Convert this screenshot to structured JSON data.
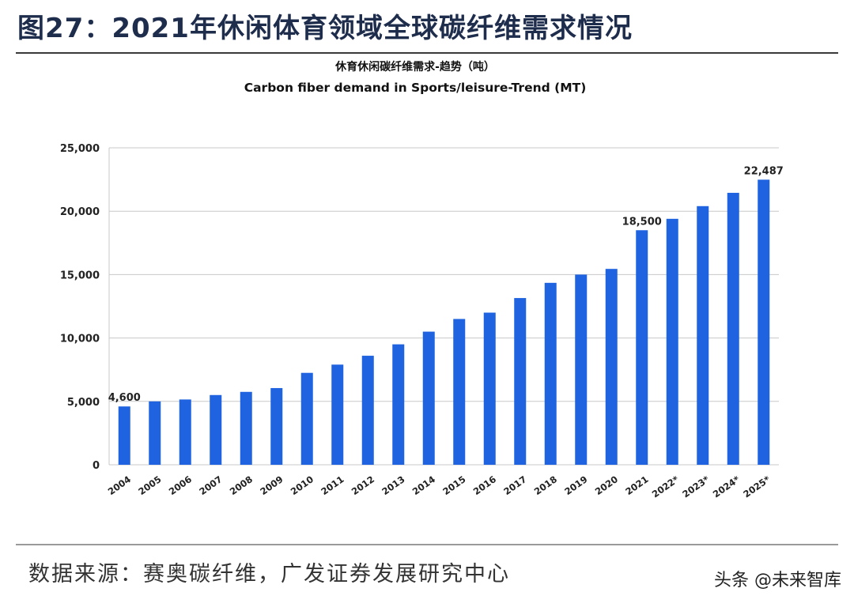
{
  "figure_title": "图27：2021年休闲体育领域全球碳纤维需求情况",
  "source": "数据来源：赛奥碳纤维，广发证券发展研究中心",
  "watermark": "头条 @未来智库",
  "colors": {
    "bar": "#1f63e0",
    "title": "#1f2d4d",
    "grid": "#c8c8c8"
  },
  "chart_data": {
    "type": "bar",
    "title": "休育休闲碳纤维需求-趋势（吨）",
    "subtitle": "Carbon fiber demand in Sports/leisure-Trend (MT)",
    "xlabel": "",
    "ylabel": "",
    "categories": [
      "2004",
      "2005",
      "2006",
      "2007",
      "2008",
      "2009",
      "2010",
      "2011",
      "2012",
      "2013",
      "2014",
      "2015",
      "2016",
      "2017",
      "2018",
      "2019",
      "2020",
      "2021",
      "2022*",
      "2023*",
      "2024*",
      "2025*"
    ],
    "values": [
      4600,
      5000,
      5150,
      5500,
      5750,
      6050,
      7250,
      7900,
      8600,
      9500,
      10500,
      11500,
      12000,
      13150,
      14350,
      15000,
      15450,
      18500,
      19400,
      20400,
      21450,
      22487
    ],
    "ylim": [
      0,
      25000
    ],
    "yticks": [
      0,
      5000,
      10000,
      15000,
      20000,
      25000
    ],
    "ytick_labels": [
      "0",
      "5,000",
      "10,000",
      "15,000",
      "20,000",
      "25,000"
    ],
    "data_labels": [
      {
        "category": "2004",
        "text": "4,600"
      },
      {
        "category": "2021",
        "text": "18,500"
      },
      {
        "category": "2025*",
        "text": "22,487"
      }
    ],
    "grid": true,
    "legend": "none"
  }
}
